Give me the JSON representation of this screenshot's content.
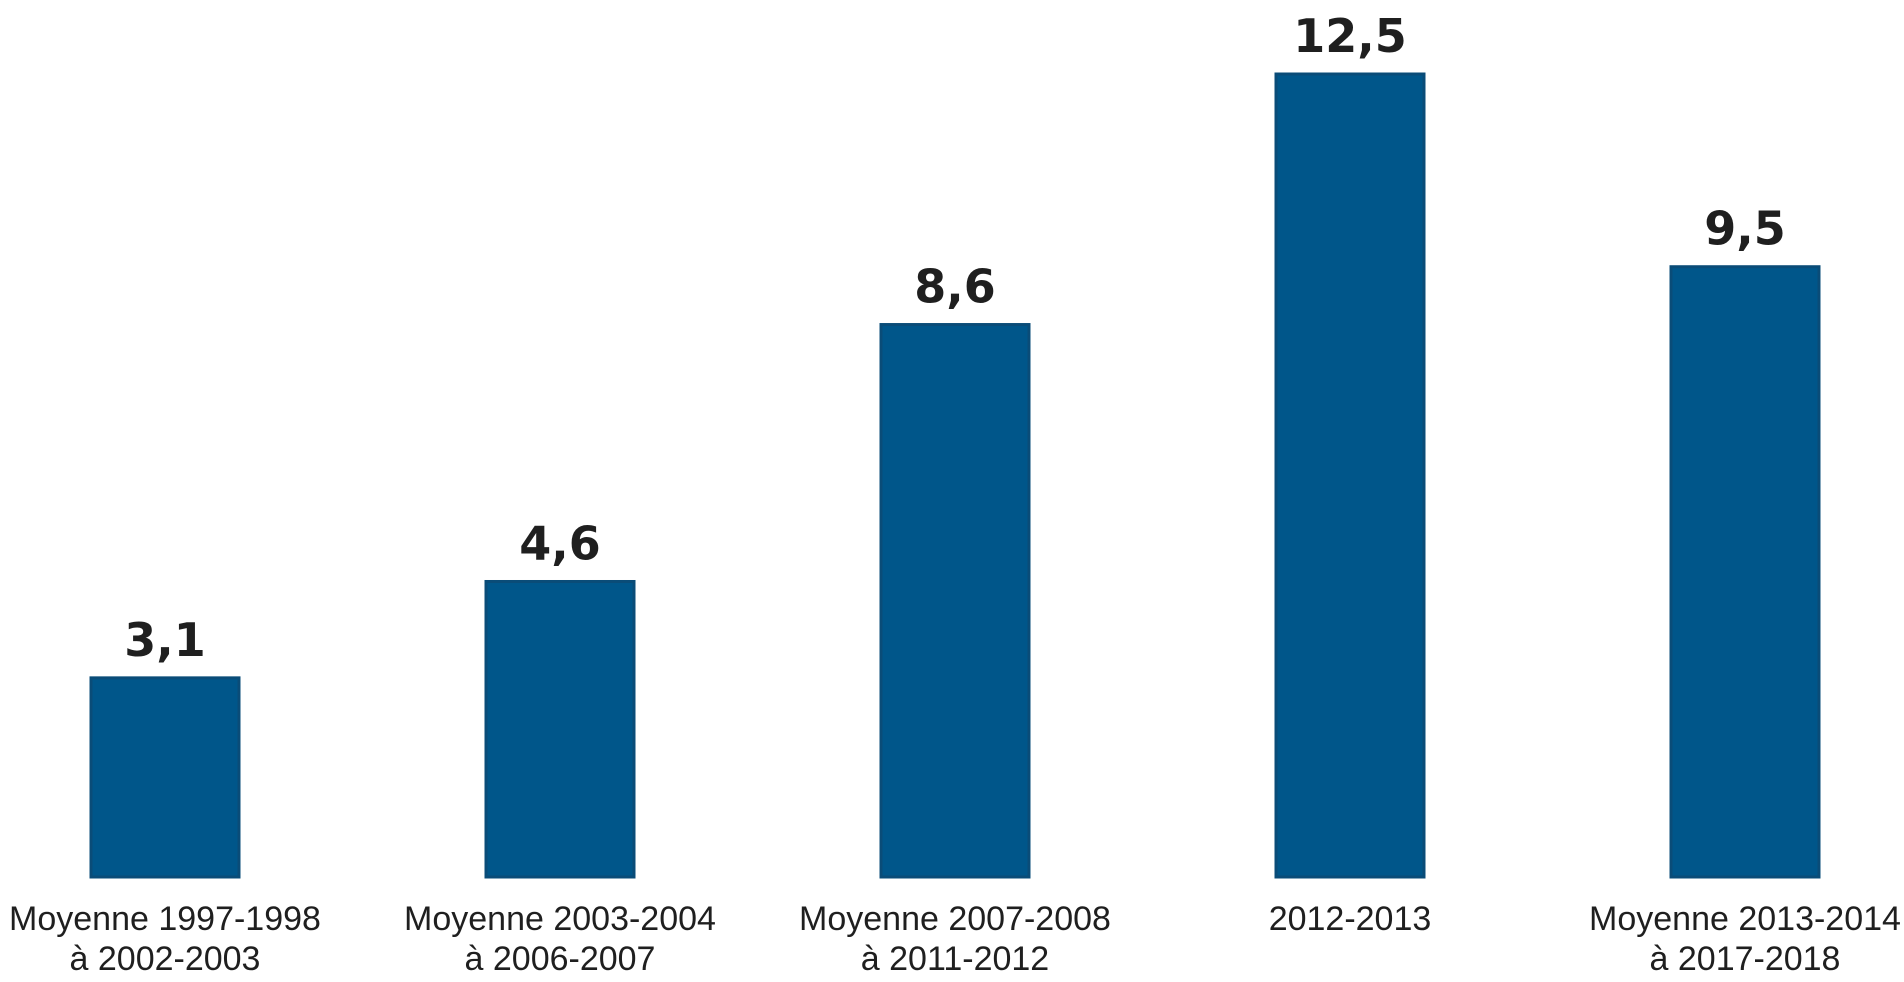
{
  "chart_data": {
    "type": "bar",
    "categories": [
      [
        "Moyenne 1997-1998",
        "à 2002-2003"
      ],
      [
        "Moyenne 2003-2004",
        "à 2006-2007"
      ],
      [
        "Moyenne 2007-2008",
        "à 2011-2012"
      ],
      [
        "2012-2013"
      ],
      [
        "Moyenne 2013-2014",
        "à 2017-2018"
      ]
    ],
    "values": [
      3.1,
      4.6,
      8.6,
      12.5,
      9.5
    ],
    "value_labels": [
      "3,1",
      "4,6",
      "8,6",
      "12,5",
      "9,5"
    ],
    "ylim": [
      0,
      12.5
    ],
    "grid": false,
    "bar_color": "#00568A",
    "bar_border_color": "#0A4C78"
  }
}
